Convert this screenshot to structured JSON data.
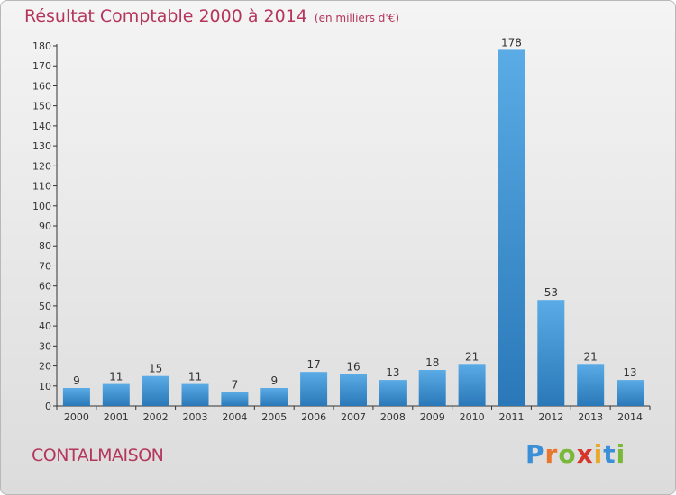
{
  "chart_data": {
    "type": "bar",
    "title": "Résultat Comptable 2000 à 2014",
    "subtitle": "(en milliers d'€)",
    "categories": [
      "2000",
      "2001",
      "2002",
      "2003",
      "2004",
      "2005",
      "2006",
      "2007",
      "2008",
      "2009",
      "2010",
      "2011",
      "2012",
      "2013",
      "2014"
    ],
    "values": [
      9,
      11,
      15,
      11,
      7,
      9,
      17,
      16,
      13,
      18,
      21,
      178,
      53,
      21,
      13
    ],
    "ylim": [
      0,
      180
    ],
    "yticks": [
      0,
      10,
      20,
      30,
      40,
      50,
      60,
      70,
      80,
      90,
      100,
      110,
      120,
      130,
      140,
      150,
      160,
      170,
      180
    ],
    "grid": false
  },
  "place_name": "CONTALMAISON",
  "logo": {
    "letters": [
      "P",
      "r",
      "o",
      "x",
      "i",
      "t",
      "i"
    ],
    "colors": [
      "#3b8fd6",
      "#e8762b",
      "#7ab83a",
      "#d8352a",
      "#e8a92b",
      "#3b8fd6",
      "#7ab83a"
    ]
  },
  "colors": {
    "bar_top": "#5aabe6",
    "bar_bottom": "#2a78b8",
    "title": "#b5365d"
  }
}
